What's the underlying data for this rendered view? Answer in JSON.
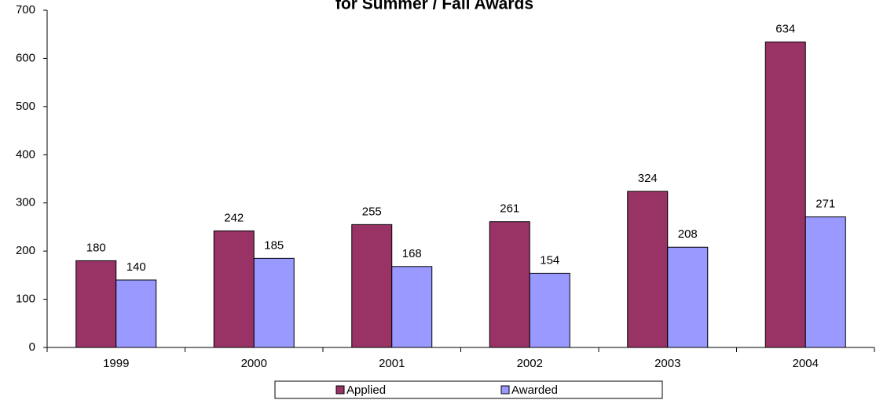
{
  "chart_data": {
    "type": "bar",
    "title": "for Summer / Fall Awards",
    "categories": [
      "1999",
      "2000",
      "2001",
      "2002",
      "2003",
      "2004"
    ],
    "series": [
      {
        "name": "Applied",
        "color": "#993366",
        "values": [
          180,
          242,
          255,
          261,
          324,
          634
        ]
      },
      {
        "name": "Awarded",
        "color": "#9999ff",
        "values": [
          140,
          185,
          168,
          154,
          208,
          271
        ]
      }
    ],
    "ylim": [
      0,
      700
    ],
    "yticks": [
      0,
      100,
      200,
      300,
      400,
      500,
      600,
      700
    ],
    "grid": false,
    "legend": "bottom"
  }
}
